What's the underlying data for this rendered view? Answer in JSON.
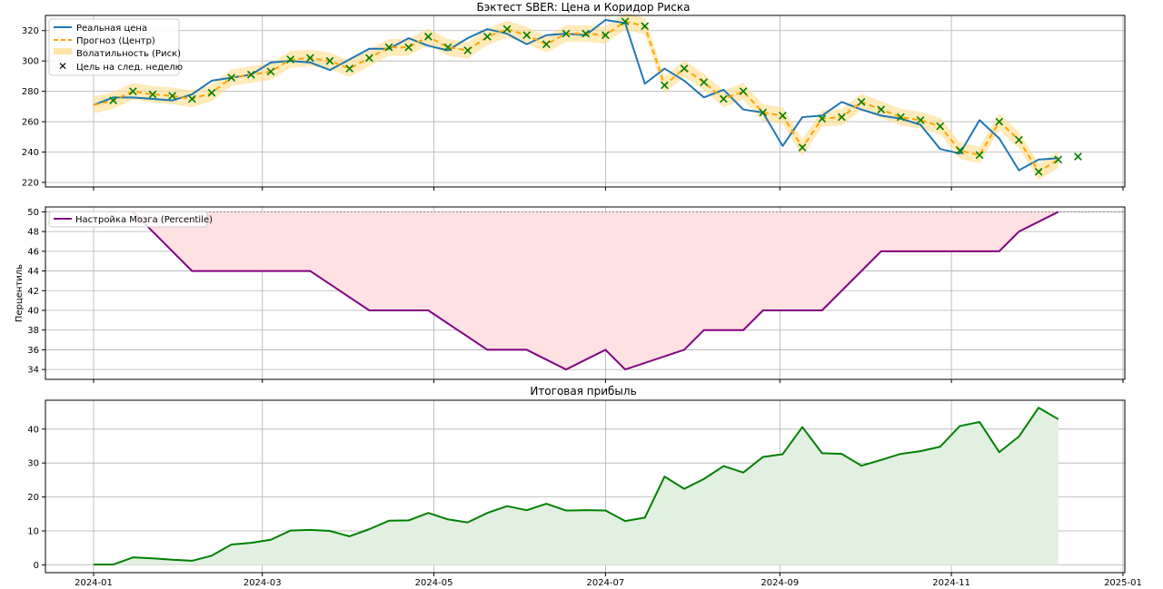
{
  "chart_data": [
    {
      "type": "line",
      "title": "Бэктест SBER: Цена и Коридор Риска",
      "ylabel": "",
      "ylim": [
        217,
        330
      ],
      "yticks": [
        220,
        240,
        260,
        280,
        300,
        320
      ],
      "xticks": [
        "2024-01",
        "2024-03",
        "2024-05",
        "2024-07",
        "2024-09",
        "2024-11",
        "2025-01"
      ],
      "show_xtick_labels": false,
      "grid": true,
      "legend_position": "top-left",
      "legend": [
        "Реальная цена",
        "Прогноз (Центр)",
        "Волатильность (Риск)",
        "Цель на след. неделю"
      ],
      "colors": {
        "real": "#1f77b4",
        "forecast": "#ffa500",
        "band": "#ffdc8c",
        "target": "#008000"
      },
      "band_halfwidth": 5.5,
      "series": [
        {
          "name": "Реальная цена",
          "x": [
            "2024-01-01",
            "2024-01-08",
            "2024-01-15",
            "2024-01-22",
            "2024-01-29",
            "2024-02-05",
            "2024-02-12",
            "2024-02-19",
            "2024-02-26",
            "2024-03-04",
            "2024-03-11",
            "2024-03-18",
            "2024-03-25",
            "2024-04-01",
            "2024-04-08",
            "2024-04-15",
            "2024-04-22",
            "2024-04-29",
            "2024-05-06",
            "2024-05-13",
            "2024-05-20",
            "2024-05-27",
            "2024-06-03",
            "2024-06-10",
            "2024-06-17",
            "2024-06-24",
            "2024-07-01",
            "2024-07-08",
            "2024-07-15",
            "2024-07-22",
            "2024-07-29",
            "2024-08-05",
            "2024-08-12",
            "2024-08-19",
            "2024-08-26",
            "2024-09-02",
            "2024-09-09",
            "2024-09-16",
            "2024-09-23",
            "2024-09-30",
            "2024-10-07",
            "2024-10-14",
            "2024-10-21",
            "2024-10-28",
            "2024-11-04",
            "2024-11-11",
            "2024-11-18",
            "2024-11-25",
            "2024-12-02",
            "2024-12-09"
          ],
          "values": [
            271,
            276,
            276,
            275,
            274,
            278,
            287,
            289,
            291,
            299,
            300,
            299,
            294,
            301,
            308,
            308,
            315,
            310,
            307,
            315,
            321,
            318,
            311,
            317,
            318,
            317,
            327,
            325,
            285,
            295,
            287,
            276,
            281,
            268,
            266,
            244,
            263,
            264,
            273,
            268,
            264,
            262,
            258,
            242,
            239,
            261,
            249,
            228,
            235,
            236
          ]
        },
        {
          "name": "Прогноз (Центр)",
          "x": [
            "2024-01-01",
            "2024-01-08",
            "2024-01-15",
            "2024-01-22",
            "2024-01-29",
            "2024-02-05",
            "2024-02-12",
            "2024-02-19",
            "2024-02-26",
            "2024-03-04",
            "2024-03-11",
            "2024-03-18",
            "2024-03-25",
            "2024-04-01",
            "2024-04-08",
            "2024-04-15",
            "2024-04-22",
            "2024-04-29",
            "2024-05-06",
            "2024-05-13",
            "2024-05-20",
            "2024-05-27",
            "2024-06-03",
            "2024-06-10",
            "2024-06-17",
            "2024-06-24",
            "2024-07-01",
            "2024-07-08",
            "2024-07-15",
            "2024-07-22",
            "2024-07-29",
            "2024-08-05",
            "2024-08-12",
            "2024-08-19",
            "2024-08-26",
            "2024-09-02",
            "2024-09-09",
            "2024-09-16",
            "2024-09-23",
            "2024-09-30",
            "2024-10-07",
            "2024-10-14",
            "2024-10-21",
            "2024-10-28",
            "2024-11-04",
            "2024-11-11",
            "2024-11-18",
            "2024-11-25",
            "2024-12-02",
            "2024-12-09"
          ],
          "values": [
            271,
            274,
            280,
            278,
            277,
            275,
            279,
            289,
            291,
            293,
            301,
            302,
            300,
            295,
            302,
            309,
            309,
            316,
            309,
            307,
            316,
            321,
            317,
            311,
            318,
            318,
            317,
            326,
            323,
            284,
            295,
            286,
            275,
            280,
            266,
            264,
            243,
            262,
            263,
            273,
            268,
            263,
            261,
            257,
            241,
            238,
            260,
            248,
            227,
            235
          ]
        },
        {
          "name": "Цель на след. неделю",
          "x": [
            "2024-01-08",
            "2024-01-15",
            "2024-01-22",
            "2024-01-29",
            "2024-02-05",
            "2024-02-12",
            "2024-02-19",
            "2024-02-26",
            "2024-03-04",
            "2024-03-11",
            "2024-03-18",
            "2024-03-25",
            "2024-04-01",
            "2024-04-08",
            "2024-04-15",
            "2024-04-22",
            "2024-04-29",
            "2024-05-06",
            "2024-05-13",
            "2024-05-20",
            "2024-05-27",
            "2024-06-03",
            "2024-06-10",
            "2024-06-17",
            "2024-06-24",
            "2024-07-01",
            "2024-07-08",
            "2024-07-15",
            "2024-07-22",
            "2024-07-29",
            "2024-08-05",
            "2024-08-12",
            "2024-08-19",
            "2024-08-26",
            "2024-09-02",
            "2024-09-09",
            "2024-09-16",
            "2024-09-23",
            "2024-09-30",
            "2024-10-07",
            "2024-10-14",
            "2024-10-21",
            "2024-10-28",
            "2024-11-04",
            "2024-11-11",
            "2024-11-18",
            "2024-11-25",
            "2024-12-02",
            "2024-12-09",
            "2024-12-16"
          ],
          "values": [
            274,
            280,
            278,
            277,
            275,
            279,
            289,
            291,
            293,
            301,
            302,
            300,
            295,
            302,
            309,
            309,
            316,
            309,
            307,
            316,
            321,
            317,
            311,
            318,
            318,
            317,
            326,
            323,
            284,
            295,
            286,
            275,
            280,
            266,
            264,
            243,
            262,
            263,
            273,
            268,
            263,
            261,
            257,
            241,
            238,
            260,
            248,
            227,
            235,
            237
          ]
        }
      ]
    },
    {
      "type": "area",
      "title": "",
      "ylabel": "Перцентиль",
      "ylim": [
        33,
        50.5
      ],
      "yticks": [
        34,
        36,
        38,
        40,
        42,
        44,
        46,
        48,
        50
      ],
      "xticks": [
        "2024-01",
        "2024-03",
        "2024-05",
        "2024-07",
        "2024-09",
        "2024-11",
        "2025-01"
      ],
      "show_xtick_labels": false,
      "grid": true,
      "legend_position": "top-left",
      "legend": [
        "Настройка Мозга (Percentile)"
      ],
      "reference_line": 50,
      "colors": {
        "line": "#800080",
        "fill": "#ffe0e3",
        "reference": "#888888"
      },
      "series": [
        {
          "name": "Настройка Мозга (Percentile)",
          "x": [
            "2024-01-15",
            "2024-02-05",
            "2024-03-18",
            "2024-04-08",
            "2024-04-29",
            "2024-05-20",
            "2024-06-03",
            "2024-06-17",
            "2024-07-01",
            "2024-07-08",
            "2024-07-29",
            "2024-08-05",
            "2024-08-19",
            "2024-08-26",
            "2024-09-16",
            "2024-10-07",
            "2024-11-18",
            "2024-11-25",
            "2024-12-09"
          ],
          "values": [
            50,
            44,
            44,
            40,
            40,
            36,
            36,
            34,
            36,
            34,
            36,
            38,
            38,
            40,
            40,
            46,
            46,
            48,
            50
          ]
        }
      ]
    },
    {
      "type": "area",
      "title": "Итоговая прибыль",
      "ylabel": "",
      "ylim": [
        -2.3,
        48.5
      ],
      "yticks": [
        0,
        10,
        20,
        30,
        40
      ],
      "xticks": [
        "2024-01",
        "2024-03",
        "2024-05",
        "2024-07",
        "2024-09",
        "2024-11",
        "2025-01"
      ],
      "show_xtick_labels": true,
      "grid": true,
      "colors": {
        "line": "#008000",
        "fill": "#e1f0e1"
      },
      "series": [
        {
          "x": [
            "2024-01-01",
            "2024-01-08",
            "2024-01-15",
            "2024-01-22",
            "2024-01-29",
            "2024-02-05",
            "2024-02-12",
            "2024-02-19",
            "2024-02-26",
            "2024-03-04",
            "2024-03-11",
            "2024-03-18",
            "2024-03-25",
            "2024-04-01",
            "2024-04-08",
            "2024-04-15",
            "2024-04-22",
            "2024-04-29",
            "2024-05-06",
            "2024-05-13",
            "2024-05-20",
            "2024-05-27",
            "2024-06-03",
            "2024-06-10",
            "2024-06-17",
            "2024-06-24",
            "2024-07-01",
            "2024-07-08",
            "2024-07-15",
            "2024-07-22",
            "2024-07-29",
            "2024-08-05",
            "2024-08-12",
            "2024-08-19",
            "2024-08-26",
            "2024-09-02",
            "2024-09-09",
            "2024-09-16",
            "2024-09-23",
            "2024-09-30",
            "2024-10-07",
            "2024-10-14",
            "2024-10-21",
            "2024-10-28",
            "2024-11-04",
            "2024-11-11",
            "2024-11-18",
            "2024-11-25",
            "2024-12-02",
            "2024-12-09"
          ],
          "values": [
            0.1,
            0.1,
            2.2,
            1.9,
            1.5,
            1.2,
            2.7,
            6.0,
            6.5,
            7.4,
            10.1,
            10.3,
            10.0,
            8.4,
            10.5,
            13.0,
            13.1,
            15.3,
            13.4,
            12.5,
            15.3,
            17.3,
            16.1,
            18.0,
            16.0,
            16.1,
            16.0,
            12.9,
            13.9,
            26.0,
            22.4,
            25.3,
            29.1,
            27.2,
            31.8,
            32.6,
            40.6,
            32.9,
            32.7,
            29.2,
            30.9,
            32.7,
            33.5,
            34.8,
            40.9,
            42.1,
            33.2,
            37.8,
            46.3,
            42.9
          ]
        }
      ]
    }
  ]
}
